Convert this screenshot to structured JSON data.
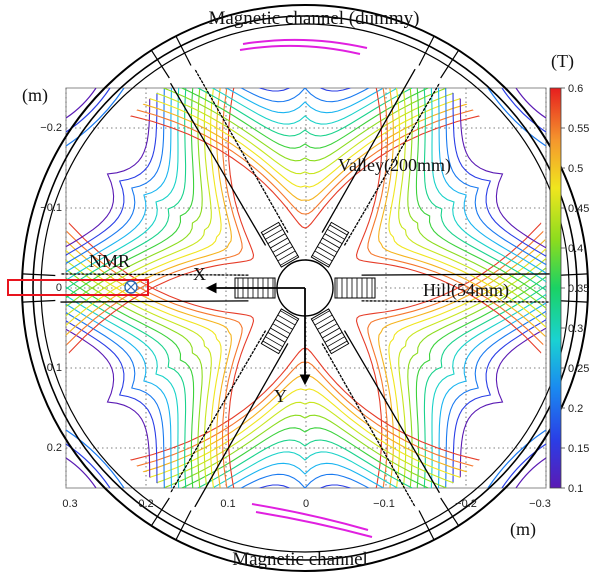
{
  "labels": {
    "top_title": "Magnetic channel (dummy)",
    "bottom_title": "Magnetic channel",
    "valley": "Valley(200mm)",
    "hill": "Hill(54mm)",
    "nmr": "NMR",
    "x_axis": "X",
    "y_axis": "Y",
    "unit_left": "(m)",
    "unit_bottom": "(m)",
    "unit_colorbar": "(T)"
  },
  "x_ticks": [
    "0.3",
    "0.2",
    "0.1",
    "0",
    "−0.1",
    "−0.2",
    "−0.3"
  ],
  "y_ticks": [
    "−0.2",
    "−0.1",
    "0",
    "0.1",
    "0.2"
  ],
  "colorbar": {
    "ticks": [
      "0.6",
      "0.55",
      "0.5",
      "0.45",
      "0.4",
      "0.35",
      "0.3",
      "0.25",
      "0.2",
      "0.15",
      "0.1"
    ],
    "range": [
      0.1,
      0.6
    ]
  },
  "colors": {
    "scale": [
      "#5a1ab4",
      "#2a3ee6",
      "#1a7af0",
      "#1ab4f0",
      "#1ad2c8",
      "#1ad28c",
      "#3cd23c",
      "#8cdc1e",
      "#c8e61e",
      "#f0e61e",
      "#f5b41e",
      "#f5782d",
      "#e63c28"
    ],
    "nmr_box": "#e8141e",
    "channel": "#e020e0",
    "axis_arrow": "#000000",
    "grid": "#555555"
  }
}
